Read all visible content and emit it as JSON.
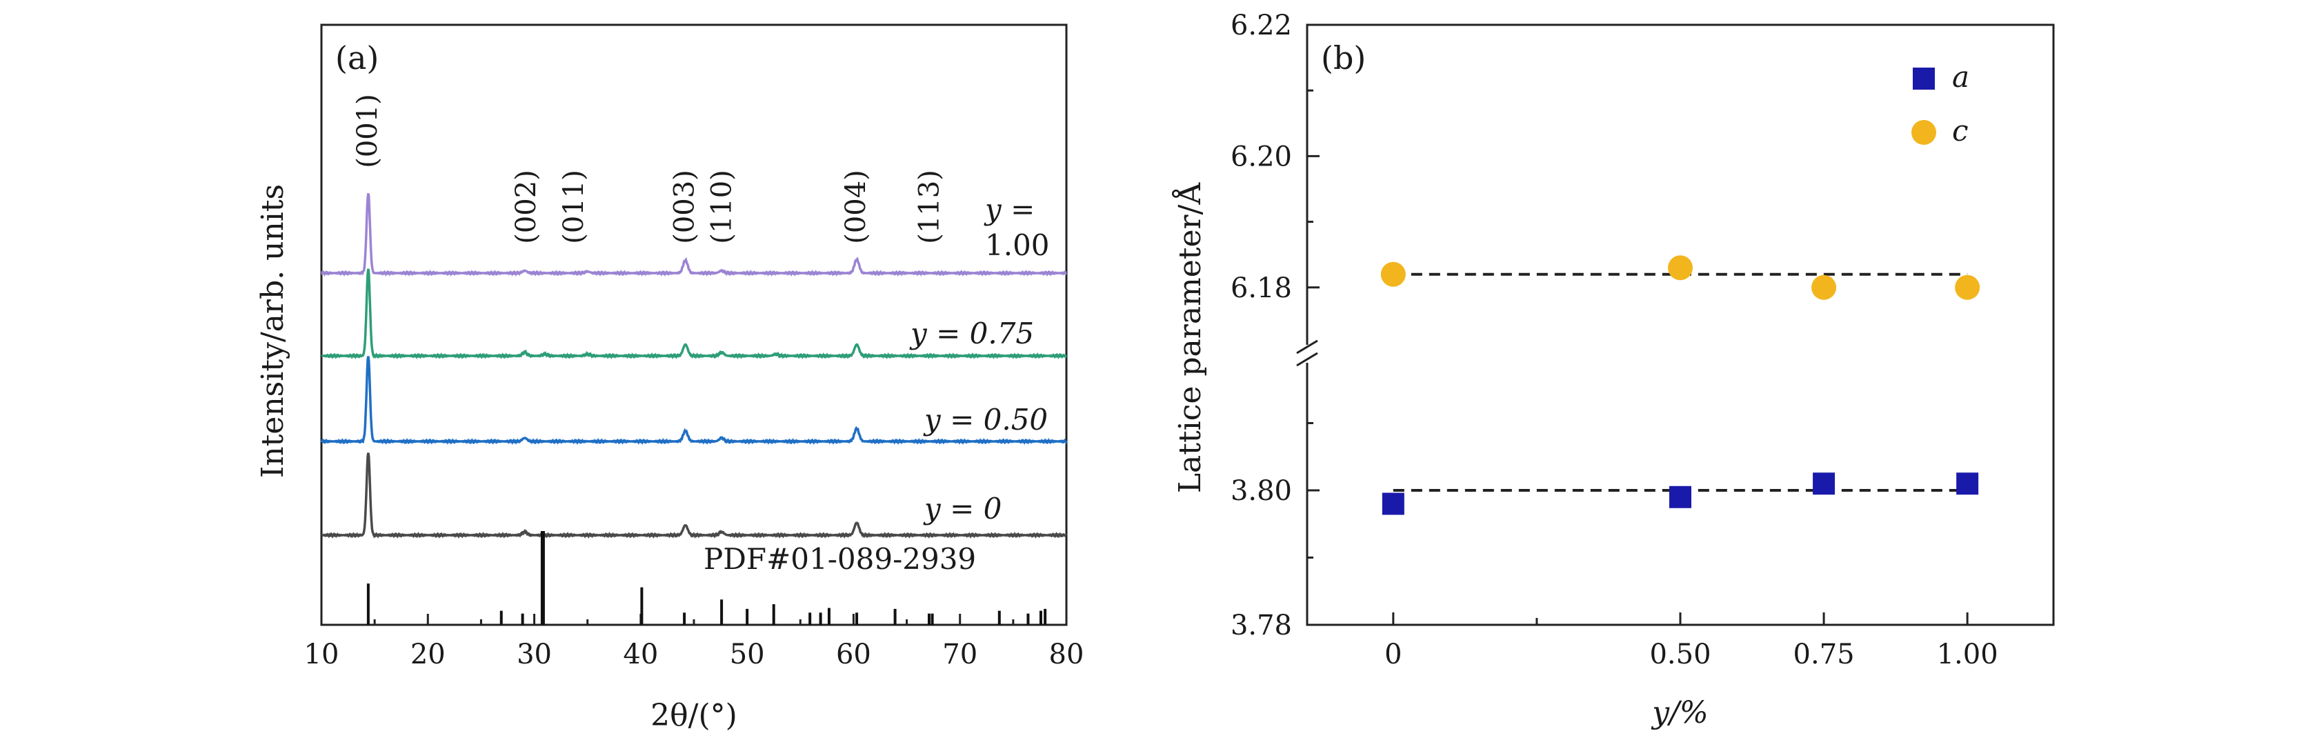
{
  "panel_a": {
    "label": "(a)",
    "xlabel": "2θ/(°)",
    "ylabel": "Intensity/arb. units",
    "reference_label": "PDF#01-089-2939",
    "y_label_top_line": "y =",
    "y_label_top_value": "1.00"
  },
  "panel_b": {
    "label": "(b)",
    "xlabel": "y/%",
    "ylabel": "Lattice parameter/Å"
  },
  "colors": {
    "y0": "#4a4a4a",
    "y050": "#1f6fc5",
    "y075": "#2e9e77",
    "y100": "#9b84d3",
    "reference": "#111111",
    "a_marker": "#1a1aaa",
    "c_marker": "#f2b51d",
    "dashed": "#222222"
  },
  "chart_data": [
    {
      "type": "line",
      "title": "(a)",
      "xlabel": "2θ/(°)",
      "ylabel": "Intensity/arb. units",
      "xlim": [
        10,
        80
      ],
      "xticks": [
        10,
        20,
        30,
        40,
        50,
        60,
        70,
        80
      ],
      "series": [
        {
          "name": "y = 0",
          "label": "y = 0",
          "peaks": [
            {
              "x": 14.4,
              "h": 1.0
            },
            {
              "x": 29.1,
              "h": 0.04
            },
            {
              "x": 44.2,
              "h": 0.12
            },
            {
              "x": 47.6,
              "h": 0.04
            },
            {
              "x": 60.3,
              "h": 0.15
            }
          ]
        },
        {
          "name": "y = 0.50",
          "label": "y = 0.50",
          "peaks": [
            {
              "x": 14.4,
              "h": 1.0
            },
            {
              "x": 29.1,
              "h": 0.04
            },
            {
              "x": 44.2,
              "h": 0.12
            },
            {
              "x": 47.6,
              "h": 0.04
            },
            {
              "x": 60.3,
              "h": 0.15
            }
          ]
        },
        {
          "name": "y = 0.75",
          "label": "y = 0.75",
          "peaks": [
            {
              "x": 14.4,
              "h": 1.0
            },
            {
              "x": 29.1,
              "h": 0.04
            },
            {
              "x": 31.0,
              "h": 0.02
            },
            {
              "x": 35.0,
              "h": 0.02
            },
            {
              "x": 44.2,
              "h": 0.13
            },
            {
              "x": 47.6,
              "h": 0.04
            },
            {
              "x": 52.7,
              "h": 0.02
            },
            {
              "x": 60.3,
              "h": 0.13
            }
          ]
        },
        {
          "name": "y = 1.00",
          "label": "1.00",
          "peaks": [
            {
              "x": 14.4,
              "h": 1.0
            },
            {
              "x": 29.1,
              "h": 0.03
            },
            {
              "x": 35.0,
              "h": 0.02
            },
            {
              "x": 44.2,
              "h": 0.16
            },
            {
              "x": 47.6,
              "h": 0.03
            },
            {
              "x": 60.3,
              "h": 0.17
            }
          ]
        }
      ],
      "peak_labels": [
        {
          "text": "(001)",
          "x": 14.4
        },
        {
          "text": "(002)",
          "x": 29.3
        },
        {
          "text": "(011)",
          "x": 33.8
        },
        {
          "text": "(003)",
          "x": 44.2
        },
        {
          "text": "(110)",
          "x": 47.7
        },
        {
          "text": "(004)",
          "x": 60.3
        },
        {
          "text": "(113)",
          "x": 67.2
        }
      ],
      "reference": {
        "name": "PDF#01-089-2939",
        "sticks": [
          {
            "x": 14.4,
            "h": 0.44
          },
          {
            "x": 26.9,
            "h": 0.15
          },
          {
            "x": 28.9,
            "h": 0.12
          },
          {
            "x": 30.8,
            "h": 1.0
          },
          {
            "x": 40.1,
            "h": 0.4
          },
          {
            "x": 44.1,
            "h": 0.13
          },
          {
            "x": 47.6,
            "h": 0.27
          },
          {
            "x": 50.0,
            "h": 0.17
          },
          {
            "x": 52.5,
            "h": 0.22
          },
          {
            "x": 55.9,
            "h": 0.13
          },
          {
            "x": 56.9,
            "h": 0.13
          },
          {
            "x": 57.7,
            "h": 0.18
          },
          {
            "x": 60.3,
            "h": 0.13
          },
          {
            "x": 63.9,
            "h": 0.17
          },
          {
            "x": 67.1,
            "h": 0.12
          },
          {
            "x": 67.4,
            "h": 0.12
          },
          {
            "x": 73.7,
            "h": 0.15
          },
          {
            "x": 76.4,
            "h": 0.12
          },
          {
            "x": 77.6,
            "h": 0.15
          },
          {
            "x": 78.0,
            "h": 0.17
          }
        ]
      }
    },
    {
      "type": "scatter",
      "title": "(b)",
      "xlabel": "y/%",
      "ylabel": "Lattice parameter/Å",
      "categories": [
        "0",
        "0.50",
        "0.75",
        "1.00"
      ],
      "x": [
        0,
        0.5,
        0.75,
        1.0
      ],
      "xlim": [
        -0.15,
        1.15
      ],
      "broken_y_axis": true,
      "upper_ylim": [
        6.17,
        6.22
      ],
      "upper_yticks": [
        "6.18",
        "6.20",
        "6.22"
      ],
      "lower_ylim": [
        3.78,
        3.82
      ],
      "lower_yticks": [
        "3.78",
        "3.80"
      ],
      "series": [
        {
          "name": "a",
          "marker": "square",
          "values": [
            3.798,
            3.799,
            3.801,
            3.801
          ],
          "mean": 3.8
        },
        {
          "name": "c",
          "marker": "circle",
          "values": [
            6.182,
            6.183,
            6.18,
            6.18
          ],
          "mean": 6.182
        }
      ],
      "legend": [
        "a",
        "c"
      ],
      "legend_position": "top-right"
    }
  ]
}
